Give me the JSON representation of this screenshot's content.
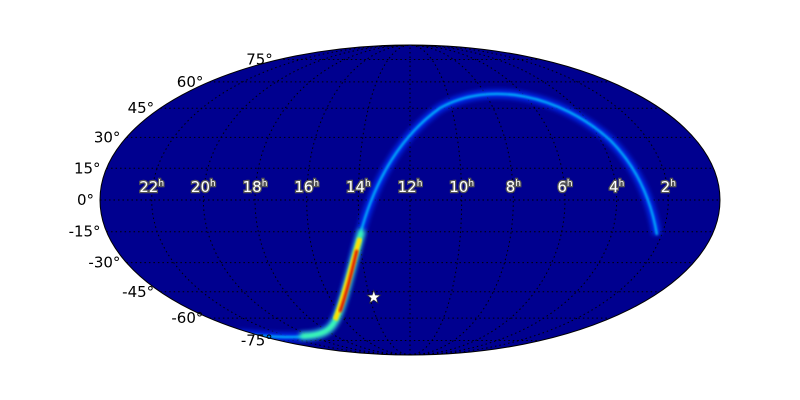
{
  "chart_data": {
    "type": "heatmap",
    "projection": "mollweide",
    "colormap": "jet",
    "grid": true,
    "lat_ticks": [
      "75°",
      "60°",
      "45°",
      "30°",
      "15°",
      "0°",
      "-15°",
      "-30°",
      "-45°",
      "-60°",
      "-75°"
    ],
    "lat_values": [
      75,
      60,
      45,
      30,
      15,
      0,
      -15,
      -30,
      -45,
      -60,
      -75
    ],
    "ra_ticks": [
      {
        "h": "22",
        "u": "h"
      },
      {
        "h": "20",
        "u": "h"
      },
      {
        "h": "18",
        "u": "h"
      },
      {
        "h": "16",
        "u": "h"
      },
      {
        "h": "14",
        "u": "h"
      },
      {
        "h": "12",
        "u": "h"
      },
      {
        "h": "10",
        "u": "h"
      },
      {
        "h": "8",
        "u": "h"
      },
      {
        "h": "6",
        "u": "h"
      },
      {
        "h": "4",
        "u": "h"
      },
      {
        "h": "2",
        "u": "h"
      }
    ],
    "marker": {
      "shape": "star",
      "ra_hours": 13.8,
      "dec_deg": -48
    },
    "colors": {
      "background": "#00008f",
      "low": "#0050ff",
      "mid": "#00e0ff",
      "high": "#ff2000"
    }
  }
}
